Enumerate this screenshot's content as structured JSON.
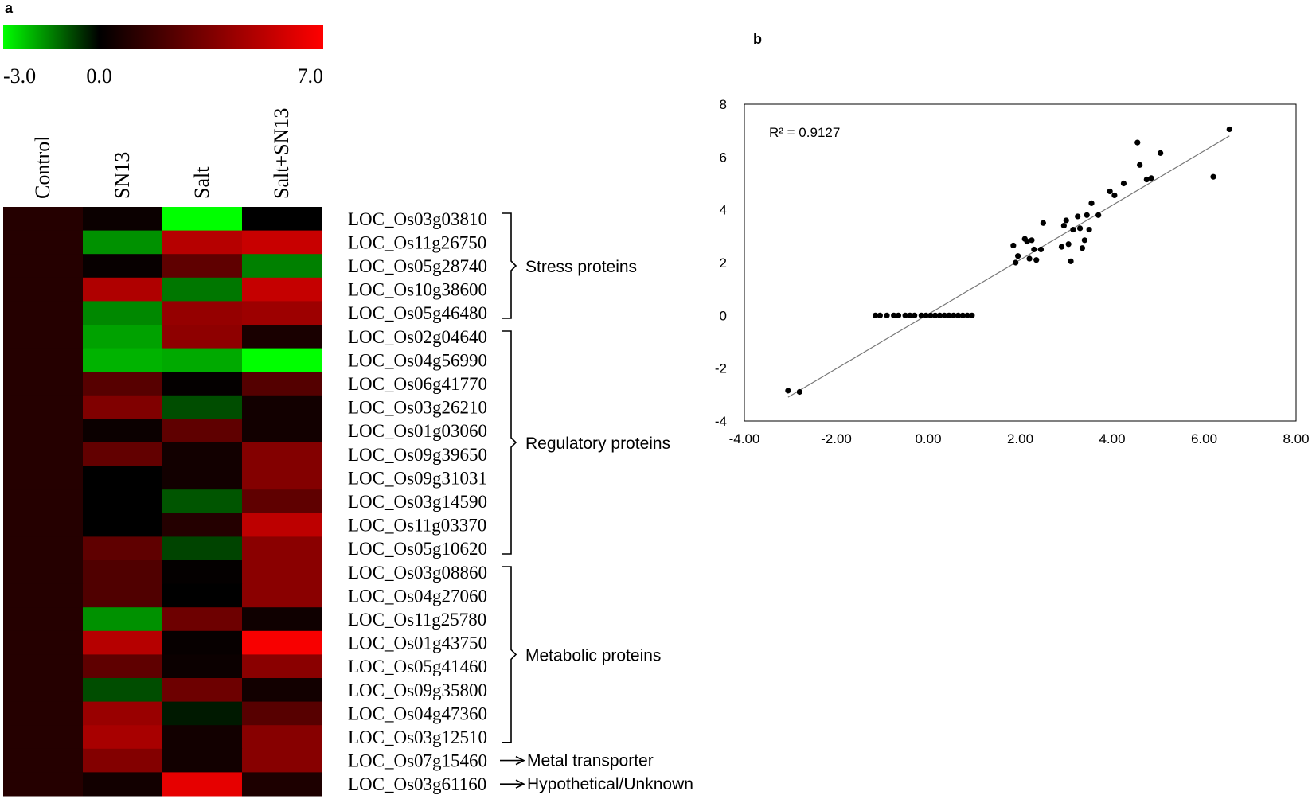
{
  "panel_labels": {
    "a": "a",
    "b": "b"
  },
  "colors": {
    "low": "#00ff00",
    "mid": "#000000",
    "high": "#ff0000",
    "control_cell": "#250000",
    "scatter_point": "#000000",
    "trend_line": "#777777"
  },
  "chart_data": [
    {
      "type": "heatmap",
      "panel": "a",
      "colorbar": {
        "min": -3.0,
        "mid": 0.0,
        "max": 7.0,
        "labels": [
          "-3.0",
          "0.0",
          "7.0"
        ]
      },
      "columns": [
        "Control",
        "SN13",
        "Salt",
        "Salt+SN13"
      ],
      "rows": [
        {
          "gene": "LOC_Os03g03810",
          "values": [
            0.3,
            0.3,
            -3.0,
            0.0
          ]
        },
        {
          "gene": "LOC_Os11g26750",
          "values": [
            0.3,
            -1.7,
            5.0,
            5.5
          ]
        },
        {
          "gene": "LOC_Os05g28740",
          "values": [
            0.3,
            0.2,
            2.6,
            -1.5
          ]
        },
        {
          "gene": "LOC_Os10g38600",
          "values": [
            0.3,
            4.8,
            -1.4,
            5.4
          ]
        },
        {
          "gene": "LOC_Os05g46480",
          "values": [
            0.3,
            -1.6,
            4.1,
            4.3
          ]
        },
        {
          "gene": "LOC_Os02g04640",
          "values": [
            0.3,
            -1.9,
            3.9,
            0.7
          ]
        },
        {
          "gene": "LOC_Os04g56990",
          "values": [
            0.3,
            -2.1,
            -2.0,
            -3.0
          ]
        },
        {
          "gene": "LOC_Os06g41770",
          "values": [
            0.3,
            2.4,
            0.1,
            2.3
          ]
        },
        {
          "gene": "LOC_Os03g26210",
          "values": [
            0.3,
            3.5,
            -0.9,
            0.5
          ]
        },
        {
          "gene": "LOC_Os01g03060",
          "values": [
            0.3,
            0.3,
            2.6,
            0.5
          ]
        },
        {
          "gene": "LOC_Os09g39650",
          "values": [
            0.3,
            2.7,
            0.5,
            3.6
          ]
        },
        {
          "gene": "LOC_Os09g31031",
          "values": [
            0.3,
            0.0,
            0.5,
            3.6
          ]
        },
        {
          "gene": "LOC_Os03g14590",
          "values": [
            0.3,
            0.0,
            -1.0,
            2.6
          ]
        },
        {
          "gene": "LOC_Os11g03370",
          "values": [
            0.3,
            0.0,
            1.0,
            5.2
          ]
        },
        {
          "gene": "LOC_Os05g10620",
          "values": [
            0.3,
            2.6,
            -0.8,
            3.8
          ]
        },
        {
          "gene": "LOC_Os03g08860",
          "values": [
            0.3,
            2.2,
            0.1,
            3.8
          ]
        },
        {
          "gene": "LOC_Os04g27060",
          "values": [
            0.3,
            2.2,
            0.0,
            3.8
          ]
        },
        {
          "gene": "LOC_Os11g25780",
          "values": [
            0.3,
            -1.7,
            3.0,
            0.4
          ]
        },
        {
          "gene": "LOC_Os01g43750",
          "values": [
            0.3,
            5.0,
            0.2,
            6.8
          ]
        },
        {
          "gene": "LOC_Os05g41460",
          "values": [
            0.3,
            2.6,
            0.3,
            3.8
          ]
        },
        {
          "gene": "LOC_Os09g35800",
          "values": [
            0.3,
            -0.9,
            3.0,
            0.5
          ]
        },
        {
          "gene": "LOC_Os04g47360",
          "values": [
            0.3,
            4.2,
            -0.3,
            2.4
          ]
        },
        {
          "gene": "LOC_Os03g12510",
          "values": [
            0.3,
            4.6,
            0.5,
            3.7
          ]
        },
        {
          "gene": "LOC_Os07g15460",
          "values": [
            0.3,
            3.6,
            0.5,
            3.7
          ]
        },
        {
          "gene": "LOC_Os03g61160",
          "values": [
            0.3,
            0.5,
            6.3,
            0.8
          ]
        }
      ],
      "groups": [
        {
          "label": "Stress proteins",
          "start": 0,
          "end": 4,
          "style": "brace"
        },
        {
          "label": "Regulatory proteins",
          "start": 5,
          "end": 14,
          "style": "brace"
        },
        {
          "label": "Metabolic proteins",
          "start": 15,
          "end": 22,
          "style": "brace"
        },
        {
          "label": "Metal transporter",
          "start": 23,
          "end": 23,
          "style": "arrow"
        },
        {
          "label": "Hypothetical/Unknown",
          "start": 24,
          "end": 24,
          "style": "arrow"
        }
      ]
    },
    {
      "type": "scatter",
      "panel": "b",
      "annotation": "R² = 0.9127",
      "xlim": [
        -4,
        8
      ],
      "ylim": [
        -4,
        8
      ],
      "xticks": [
        -4,
        -2,
        0,
        2,
        4,
        6,
        8
      ],
      "xtick_labels": [
        "-4.00",
        "-2.00",
        "0.00",
        "2.00",
        "4.00",
        "6.00",
        "8.00"
      ],
      "yticks": [
        -4,
        -2,
        0,
        2,
        4,
        6,
        8
      ],
      "ytick_labels": [
        "-4",
        "-2",
        "0",
        "2",
        "4",
        "6",
        "8"
      ],
      "trendline": {
        "x": [
          -3.05,
          6.55
        ],
        "y": [
          -3.1,
          6.8
        ]
      },
      "points": [
        [
          -3.05,
          -2.85
        ],
        [
          -2.8,
          -2.9
        ],
        [
          -1.15,
          0
        ],
        [
          -1.05,
          0
        ],
        [
          -0.9,
          0
        ],
        [
          -0.75,
          0
        ],
        [
          -0.65,
          0
        ],
        [
          -0.5,
          0
        ],
        [
          -0.4,
          0
        ],
        [
          -0.3,
          0
        ],
        [
          -0.15,
          0
        ],
        [
          -0.05,
          0
        ],
        [
          0.05,
          0
        ],
        [
          0.15,
          0
        ],
        [
          0.25,
          0
        ],
        [
          0.35,
          0
        ],
        [
          0.45,
          0
        ],
        [
          0.55,
          0
        ],
        [
          0.65,
          0
        ],
        [
          0.75,
          0
        ],
        [
          0.85,
          0
        ],
        [
          0.95,
          0
        ],
        [
          1.85,
          2.65
        ],
        [
          1.9,
          2.0
        ],
        [
          1.95,
          2.25
        ],
        [
          2.1,
          2.9
        ],
        [
          2.15,
          2.8
        ],
        [
          2.2,
          2.15
        ],
        [
          2.25,
          2.85
        ],
        [
          2.3,
          2.5
        ],
        [
          2.35,
          2.1
        ],
        [
          2.45,
          2.5
        ],
        [
          2.5,
          3.5
        ],
        [
          2.9,
          2.6
        ],
        [
          2.95,
          3.4
        ],
        [
          3.0,
          3.6
        ],
        [
          3.05,
          2.7
        ],
        [
          3.1,
          2.05
        ],
        [
          3.15,
          3.25
        ],
        [
          3.25,
          3.75
        ],
        [
          3.3,
          3.3
        ],
        [
          3.35,
          2.55
        ],
        [
          3.4,
          2.85
        ],
        [
          3.45,
          3.8
        ],
        [
          3.5,
          3.25
        ],
        [
          3.55,
          4.25
        ],
        [
          3.7,
          3.8
        ],
        [
          3.95,
          4.7
        ],
        [
          4.05,
          4.55
        ],
        [
          4.25,
          5.0
        ],
        [
          4.55,
          6.55
        ],
        [
          4.6,
          5.7
        ],
        [
          4.75,
          5.15
        ],
        [
          4.85,
          5.2
        ],
        [
          5.05,
          6.15
        ],
        [
          6.2,
          5.25
        ],
        [
          6.55,
          7.05
        ]
      ]
    }
  ]
}
